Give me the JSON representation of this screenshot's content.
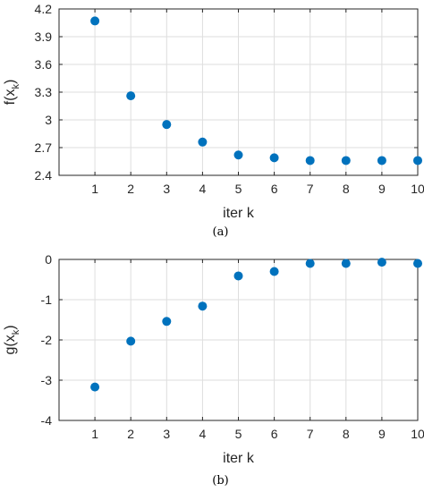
{
  "chart_data": [
    {
      "type": "scatter",
      "caption": "(a)",
      "xlabel": "iter k",
      "ylabel": {
        "main": "f(x",
        "sub": "k",
        "close": ")"
      },
      "x": [
        1,
        2,
        3,
        4,
        5,
        6,
        7,
        8,
        9,
        10
      ],
      "y": [
        4.07,
        3.26,
        2.95,
        2.76,
        2.62,
        2.59,
        2.56,
        2.56,
        2.56,
        2.56
      ],
      "xlim": [
        0,
        10
      ],
      "ylim": [
        2.4,
        4.2
      ],
      "xticks": [
        1,
        2,
        3,
        4,
        5,
        6,
        7,
        8,
        9,
        10
      ],
      "yticks": [
        2.4,
        2.7,
        3,
        3.3,
        3.6,
        3.9,
        4.2
      ],
      "ytick_labels": [
        "2.4",
        "2.7",
        "3",
        "3.3",
        "3.6",
        "3.9",
        "4.2"
      ],
      "grid": true,
      "marker_color": "#0072BD"
    },
    {
      "type": "scatter",
      "caption": "(b)",
      "xlabel": "iter k",
      "ylabel": {
        "main": "g(x",
        "sub": "k",
        "close": ")"
      },
      "x": [
        1,
        2,
        3,
        4,
        5,
        6,
        7,
        8,
        9,
        10
      ],
      "y": [
        -3.17,
        -2.03,
        -1.54,
        -1.16,
        -0.41,
        -0.3,
        -0.1,
        -0.1,
        -0.07,
        -0.1
      ],
      "xlim": [
        0,
        10
      ],
      "ylim": [
        -4,
        0
      ],
      "xticks": [
        1,
        2,
        3,
        4,
        5,
        6,
        7,
        8,
        9,
        10
      ],
      "yticks": [
        -4,
        -3,
        -2,
        -1,
        0
      ],
      "ytick_labels": [
        "-4",
        "-3",
        "-2",
        "-1",
        "0"
      ],
      "grid": true,
      "marker_color": "#0072BD"
    }
  ]
}
